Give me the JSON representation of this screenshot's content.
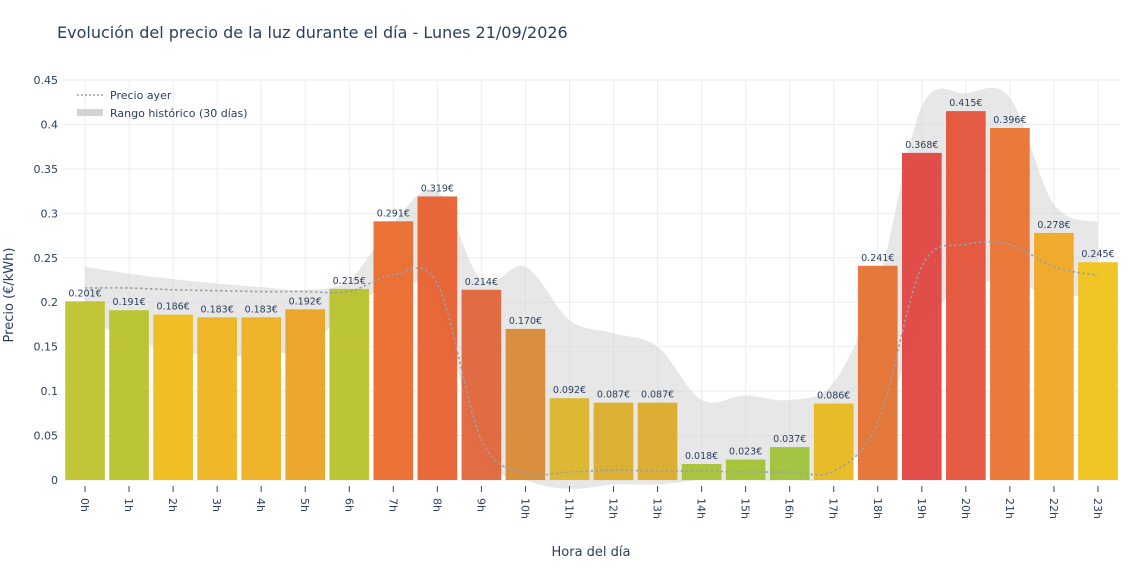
{
  "chart_data": {
    "type": "bar",
    "title": "Evolución del precio de la luz durante el día - Lunes 21/09/2026",
    "xlabel": "Hora del día",
    "ylabel": "Precio (€/kWh)",
    "ylim": [
      0,
      0.45
    ],
    "yticks": [
      "0",
      "0.05",
      "0.1",
      "0.15",
      "0.2",
      "0.25",
      "0.3",
      "0.35",
      "0.4",
      "0.45"
    ],
    "categories": [
      "0h",
      "1h",
      "2h",
      "3h",
      "4h",
      "5h",
      "6h",
      "7h",
      "8h",
      "9h",
      "10h",
      "11h",
      "12h",
      "13h",
      "14h",
      "15h",
      "16h",
      "17h",
      "18h",
      "19h",
      "20h",
      "21h",
      "22h",
      "23h"
    ],
    "values": [
      0.201,
      0.191,
      0.186,
      0.183,
      0.183,
      0.192,
      0.215,
      0.291,
      0.319,
      0.214,
      0.17,
      0.092,
      0.087,
      0.087,
      0.018,
      0.023,
      0.037,
      0.086,
      0.241,
      0.368,
      0.415,
      0.396,
      0.278,
      0.245
    ],
    "value_labels": [
      "0.201€",
      "0.191€",
      "0.186€",
      "0.183€",
      "0.183€",
      "0.192€",
      "0.215€",
      "0.291€",
      "0.319€",
      "0.214€",
      "0.170€",
      "0.092€",
      "0.087€",
      "0.087€",
      "0.018€",
      "0.023€",
      "0.037€",
      "0.086€",
      "0.241€",
      "0.368€",
      "0.415€",
      "0.396€",
      "0.278€",
      "0.245€"
    ],
    "bar_colors": [
      "#bdc32c",
      "#b8c22a",
      "#f0bb1a",
      "#eeb31e",
      "#eeb01e",
      "#eba222",
      "#b8c22a",
      "#eb6b2c",
      "#e8602e",
      "#e0643a",
      "#d98a36",
      "#dbb52a",
      "#dbad2a",
      "#dbab2a",
      "#a5c236",
      "#a3c236",
      "#a0c23a",
      "#e8b81e",
      "#e37230",
      "#e04440",
      "#e4523a",
      "#e97230",
      "#f0a822",
      "#f0c21a"
    ],
    "series": [
      {
        "name": "Precio ayer",
        "style": "dotted",
        "color": "#9aa0a6",
        "values": [
          0.216,
          0.216,
          0.214,
          0.213,
          0.212,
          0.212,
          0.212,
          0.231,
          0.221,
          0.045,
          0.008,
          0.009,
          0.011,
          0.01,
          0.01,
          0.009,
          0.009,
          0.01,
          0.065,
          0.24,
          0.265,
          0.265,
          0.24,
          0.23
        ]
      },
      {
        "name": "Rango histórico (30 días)",
        "style": "band",
        "color": "#d3d3d3",
        "upper": [
          0.24,
          0.232,
          0.226,
          0.221,
          0.217,
          0.214,
          0.225,
          0.29,
          0.325,
          0.225,
          0.24,
          0.18,
          0.165,
          0.15,
          0.09,
          0.095,
          0.09,
          0.11,
          0.22,
          0.42,
          0.435,
          0.43,
          0.31,
          0.29
        ],
        "lower": [
          0.18,
          0.16,
          0.145,
          0.14,
          0.14,
          0.15,
          0.19,
          0.22,
          0.2,
          0.03,
          0.0,
          -0.01,
          -0.005,
          -0.005,
          0.0,
          0.0,
          0.0,
          0.005,
          0.06,
          0.17,
          0.22,
          0.22,
          0.21,
          0.205
        ]
      }
    ],
    "legend_position": "top-left",
    "grid": true
  }
}
